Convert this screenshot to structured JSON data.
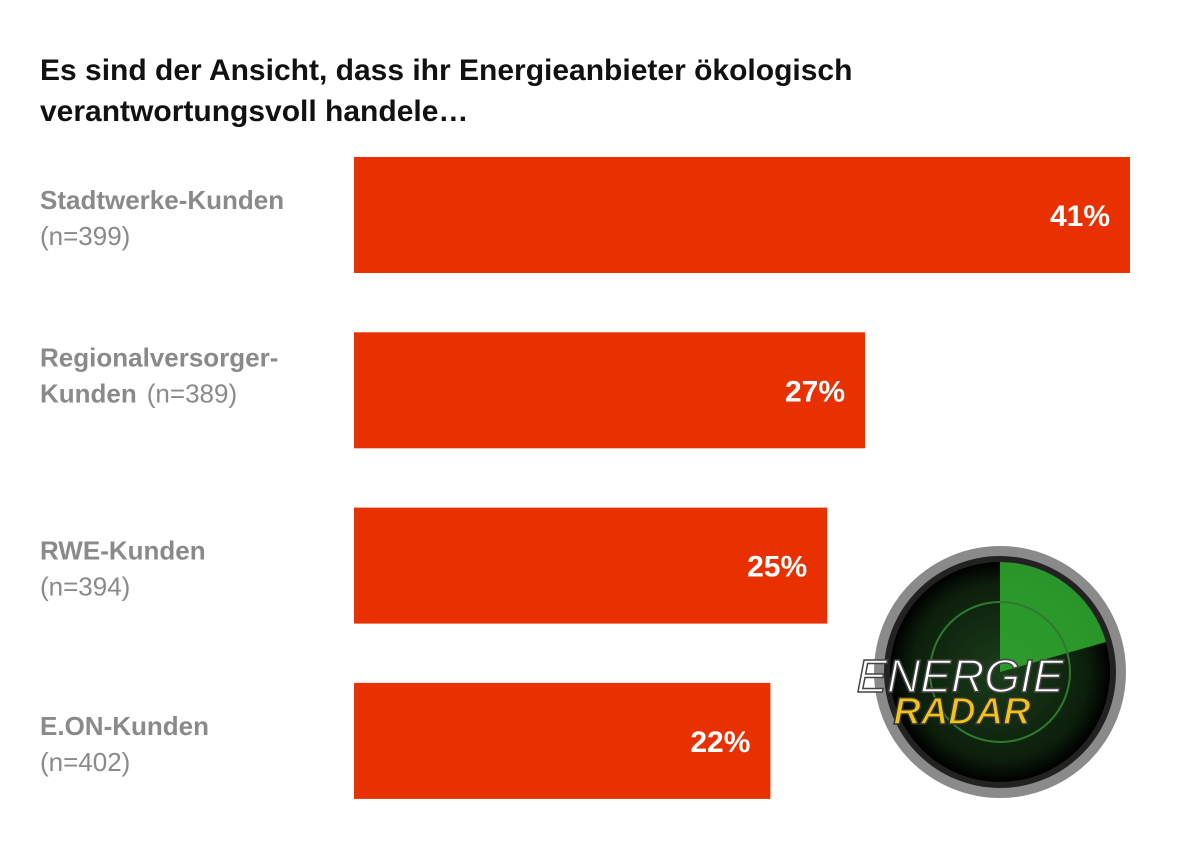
{
  "chart_data": {
    "type": "bar",
    "orientation": "horizontal",
    "title": [
      "Es sind der Ansicht, dass ihr Energieanbieter ökologisch",
      "verantwortungsvoll handele…"
    ],
    "categories": [
      "Stadtwerke-Kunden",
      "Regionalversorger-Kunden",
      "RWE-Kunden",
      "E.ON-Kunden"
    ],
    "sample_sizes": [
      "(n=399)",
      "(n=389)",
      "(n=394)",
      "(n=402)"
    ],
    "values": [
      41,
      27,
      25,
      22
    ],
    "value_labels": [
      "41%",
      "27%",
      "25%",
      "22%"
    ],
    "color": "#e83000"
  },
  "logo": {
    "line1": "ENERGIE",
    "line2": "RADAR"
  }
}
